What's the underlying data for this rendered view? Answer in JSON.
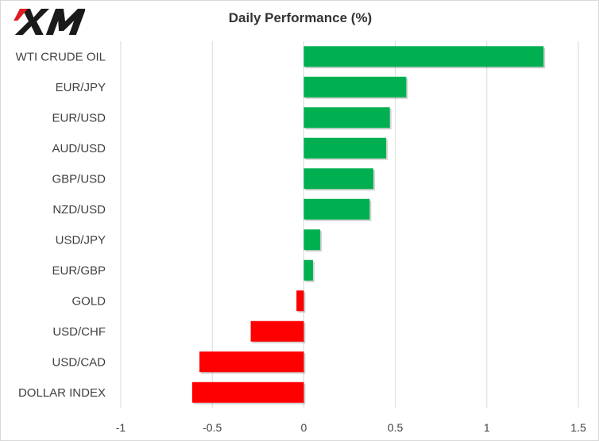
{
  "brand": {
    "logo_text": "XM",
    "colors": {
      "mark": "#e11b22",
      "text": "#1a1a1a"
    }
  },
  "chart_data": {
    "type": "bar",
    "orientation": "horizontal",
    "title": "Daily Performance  (%)",
    "xlabel": "",
    "ylabel": "",
    "categories": [
      "WTI CRUDE OIL",
      "EUR/JPY",
      "EUR/USD",
      "AUD/USD",
      "GBP/USD",
      "NZD/USD",
      "USD/JPY",
      "EUR/GBP",
      "GOLD",
      "USD/CHF",
      "USD/CAD",
      "DOLLAR INDEX"
    ],
    "values": [
      1.31,
      0.56,
      0.47,
      0.45,
      0.38,
      0.36,
      0.09,
      0.05,
      -0.04,
      -0.29,
      -0.57,
      -0.61
    ],
    "xlim": [
      -1,
      1.5
    ],
    "xticks": [
      -1,
      -0.5,
      0,
      0.5,
      1,
      1.5
    ],
    "xtick_labels": [
      "-1",
      "-0.5",
      "0",
      "0.5",
      "1",
      "1.5"
    ],
    "grid": "vertical",
    "legend": "none",
    "colors": {
      "positive": "#00b050",
      "negative": "#ff0000",
      "grid": "#d9d9d9",
      "label": "#404040"
    }
  }
}
